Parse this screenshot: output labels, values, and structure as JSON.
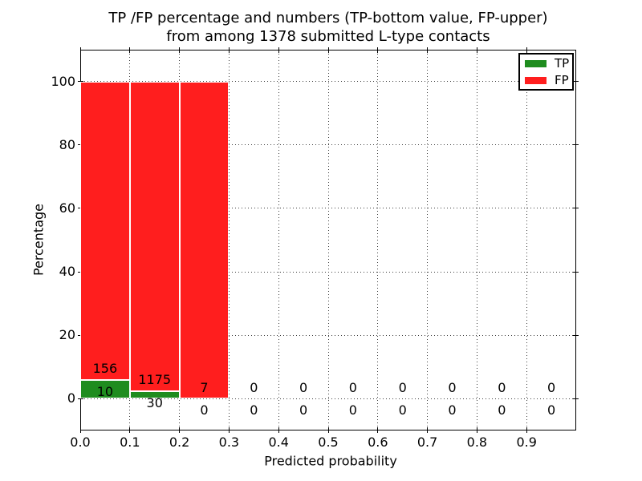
{
  "chart_data": {
    "type": "bar",
    "title_line1": "TP /FP percentage and numbers (TP-bottom value, FP-upper)",
    "title_line2": "from among 1378 submitted L-type contacts",
    "xlabel": "Predicted probability",
    "ylabel": "Percentage",
    "total_submitted": 1378,
    "xlim": [
      0.0,
      1.0
    ],
    "ylim": [
      -10,
      110
    ],
    "grid": true,
    "yticks": [
      0,
      20,
      40,
      60,
      80,
      100
    ],
    "xtick_labels": [
      "0.0",
      "0.1",
      "0.2",
      "0.3",
      "0.4",
      "0.5",
      "0.6",
      "0.7",
      "0.8",
      "0.9"
    ],
    "bin_width": 0.1,
    "bins": [
      {
        "range": [
          0.0,
          0.1
        ],
        "tp": 10,
        "fp": 156
      },
      {
        "range": [
          0.1,
          0.2
        ],
        "tp": 30,
        "fp": 1175
      },
      {
        "range": [
          0.2,
          0.3
        ],
        "tp": 0,
        "fp": 7
      },
      {
        "range": [
          0.3,
          0.4
        ],
        "tp": 0,
        "fp": 0
      },
      {
        "range": [
          0.4,
          0.5
        ],
        "tp": 0,
        "fp": 0
      },
      {
        "range": [
          0.5,
          0.6
        ],
        "tp": 0,
        "fp": 0
      },
      {
        "range": [
          0.6,
          0.7
        ],
        "tp": 0,
        "fp": 0
      },
      {
        "range": [
          0.7,
          0.8
        ],
        "tp": 0,
        "fp": 0
      },
      {
        "range": [
          0.8,
          0.9
        ],
        "tp": 0,
        "fp": 0
      },
      {
        "range": [
          0.9,
          1.0
        ],
        "tp": 0,
        "fp": 0
      }
    ],
    "colors": {
      "tp": "#1e8c1e",
      "fp": "#ff1e1e",
      "bar_edge": "#ffffff",
      "text": "#000000"
    },
    "legend": {
      "position": "upper right",
      "entries": [
        {
          "label": "TP",
          "color": "#1e8c1e"
        },
        {
          "label": "FP",
          "color": "#ff1e1e"
        }
      ]
    }
  }
}
